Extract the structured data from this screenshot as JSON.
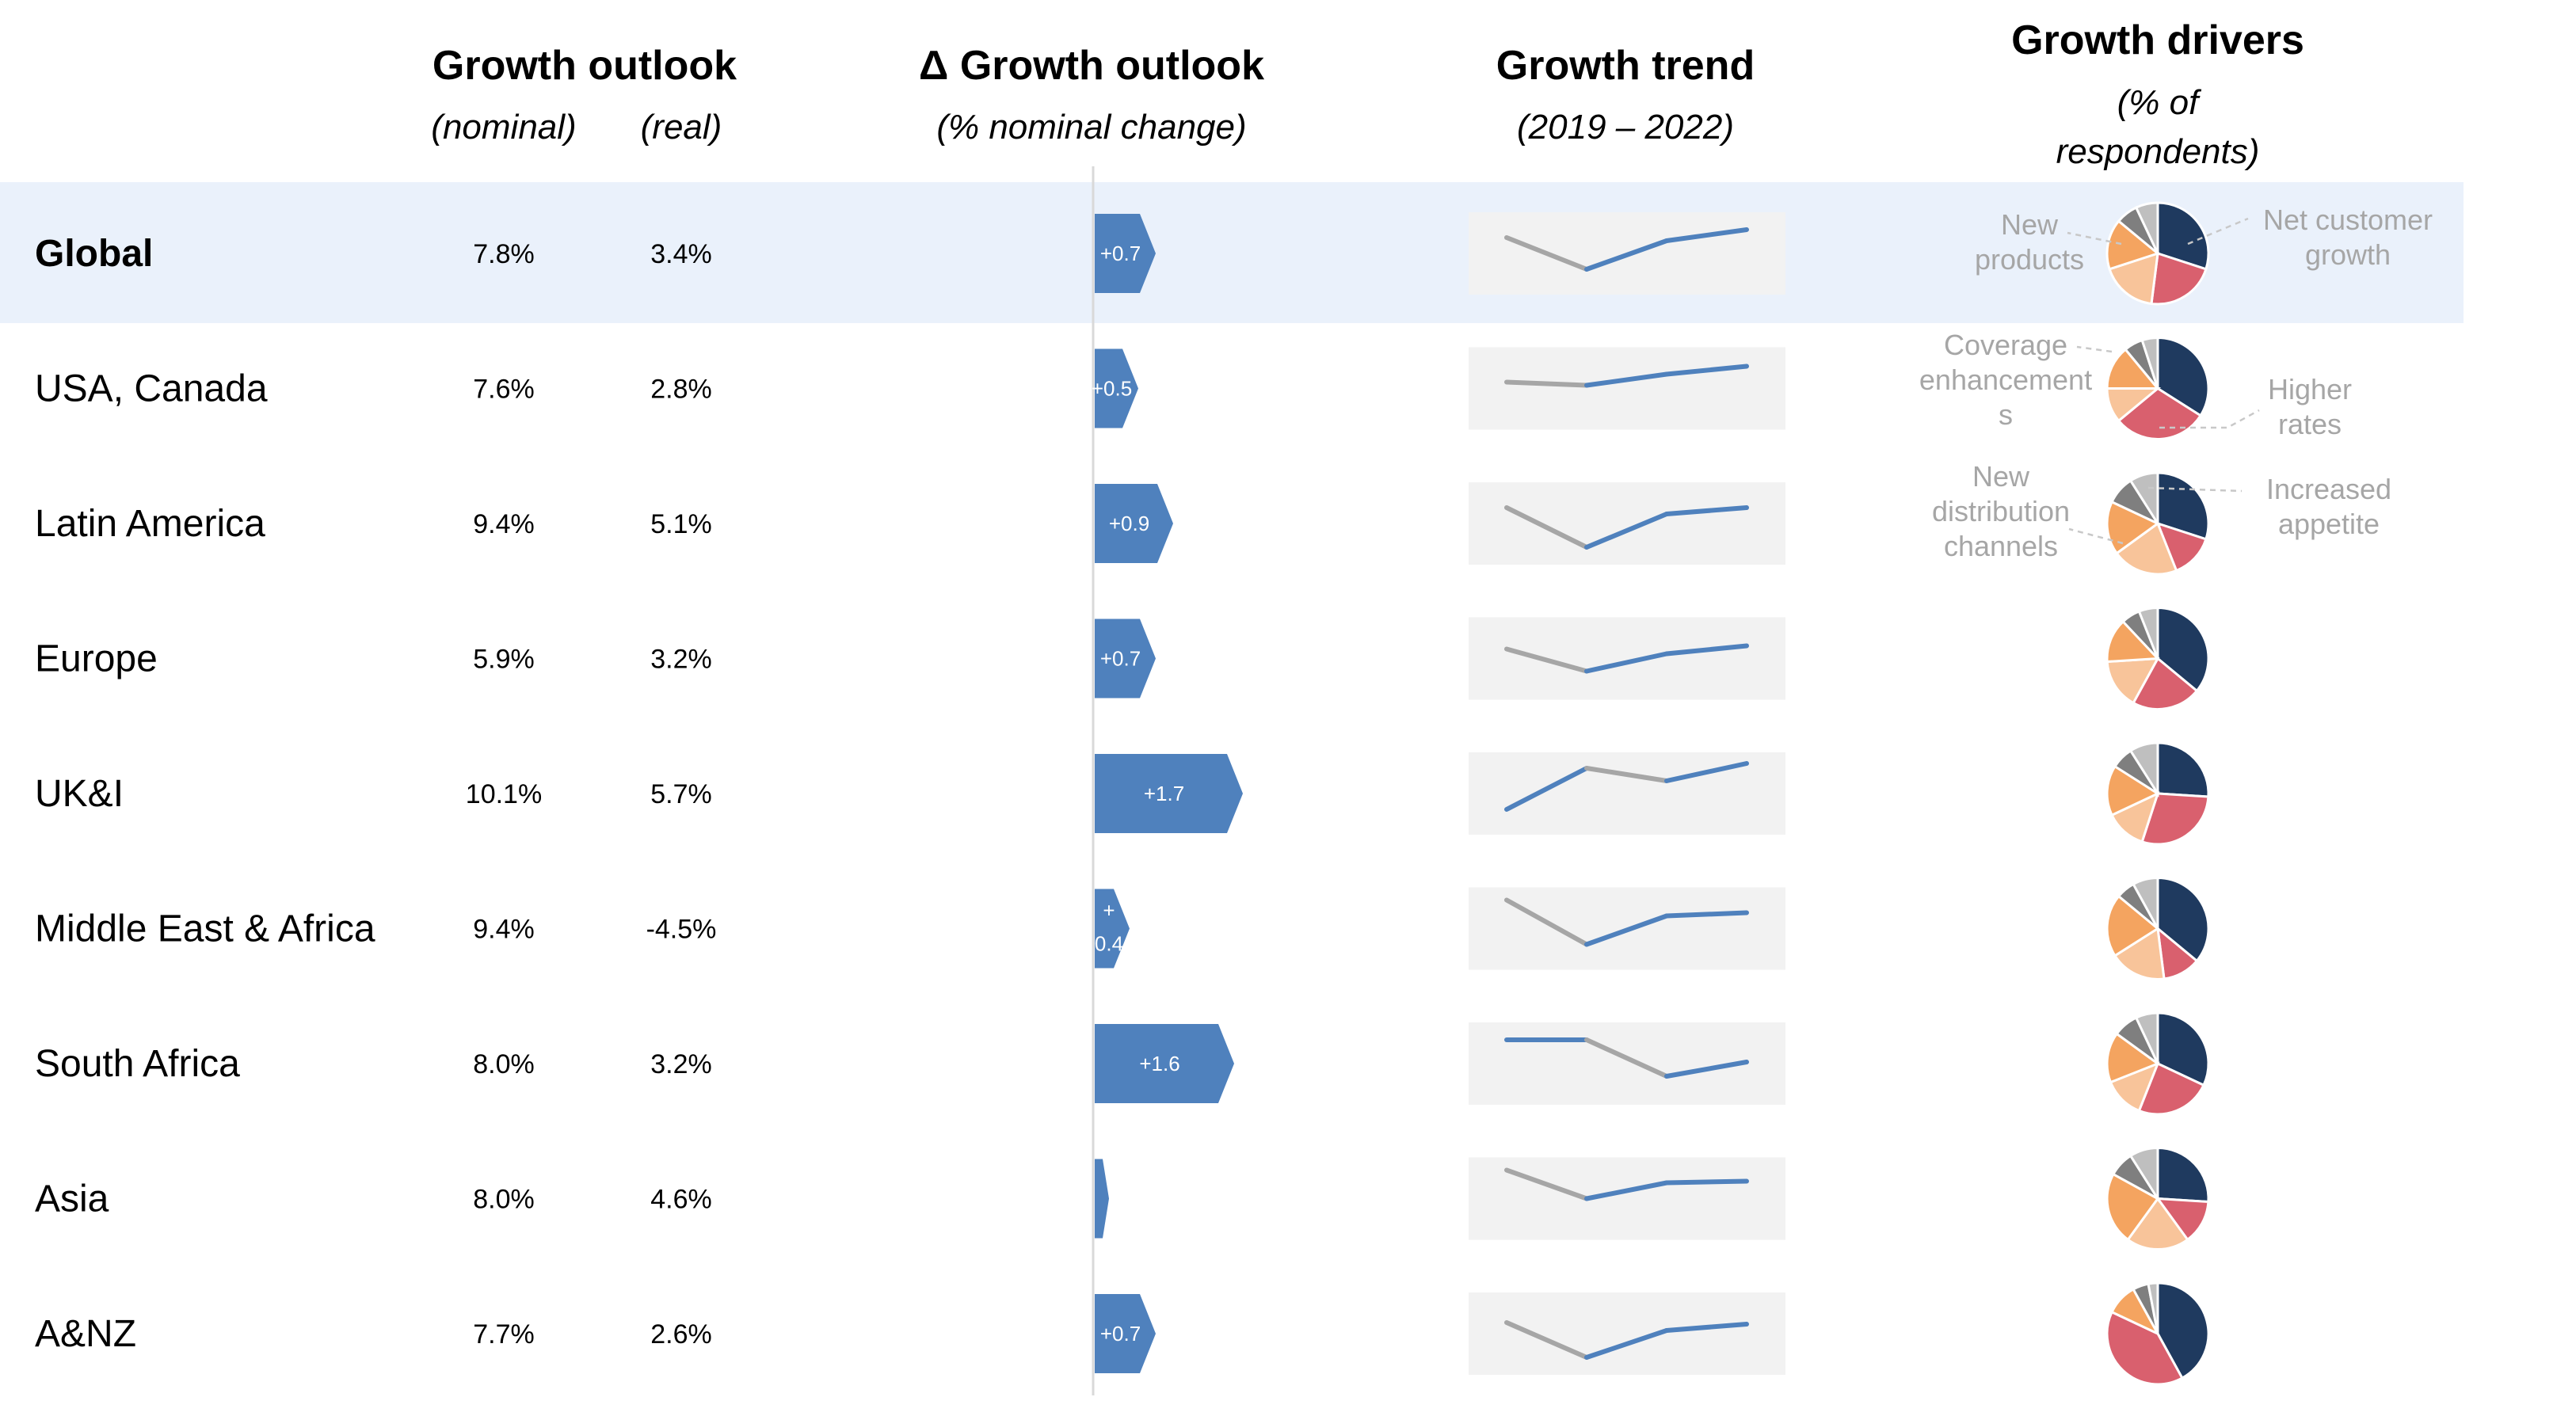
{
  "headers": {
    "growth_outlook": "Growth outlook",
    "nominal": "(nominal)",
    "real": "(real)",
    "delta_outlook": "Δ Growth outlook",
    "delta_sub": "(% nominal change)",
    "trend": "Growth trend",
    "trend_sub": "(2019 – 2022)",
    "drivers": "Growth drivers",
    "drivers_sub_1": "(% of",
    "drivers_sub_2": "respondents)"
  },
  "annotations": {
    "new_products": [
      "New",
      "products"
    ],
    "net_customer_growth": [
      "Net customer",
      "growth"
    ],
    "coverage_enhancements": [
      "Coverage",
      "enhancement",
      "s"
    ],
    "higher_rates": [
      "Higher",
      "rates"
    ],
    "new_distribution_channels": [
      "New",
      "distribution",
      "channels"
    ],
    "increased_appetite": [
      "Increased",
      "appetite"
    ]
  },
  "colors": {
    "highlight_row": "#eaf1fb",
    "bar": "#4f81bd",
    "trend_bg": "#f2f2f2",
    "trend_up": "#4f81bd",
    "trend_down": "#a6a6a6",
    "pie": [
      "#1f3a5f",
      "#d9606e",
      "#f8c49a",
      "#f4a460",
      "#7f7f7f",
      "#bfbfbf"
    ],
    "annotation_text": "#a6a6a6"
  },
  "chart_data": {
    "type": "table",
    "columns": [
      "Region",
      "Growth outlook (nominal)",
      "Growth outlook (real)",
      "Δ Growth outlook",
      "Growth trend",
      "Growth drivers"
    ],
    "pie_categories": [
      "Net customer growth",
      "Higher rates",
      "Increased appetite",
      "New distribution channels",
      "Coverage enhancements",
      "New products"
    ],
    "rows": [
      {
        "region": "Global",
        "nominal": "7.8%",
        "real": "3.4%",
        "delta": 0.7,
        "delta_label": "+0.7",
        "trend": [
          3.0,
          1.0,
          2.8,
          3.5
        ],
        "drivers": [
          30,
          22,
          18,
          16,
          7,
          7
        ]
      },
      {
        "region": "USA, Canada",
        "nominal": "7.6%",
        "real": "2.8%",
        "delta": 0.5,
        "delta_label": "+0.5",
        "trend": [
          2.4,
          2.2,
          2.9,
          3.4
        ],
        "drivers": [
          34,
          30,
          11,
          14,
          6,
          5
        ]
      },
      {
        "region": "Latin America",
        "nominal": "9.4%",
        "real": "5.1%",
        "delta": 0.9,
        "delta_label": "+0.9",
        "trend": [
          3.0,
          0.5,
          2.6,
          3.0
        ],
        "drivers": [
          30,
          14,
          21,
          17,
          9,
          9
        ]
      },
      {
        "region": "Europe",
        "nominal": "5.9%",
        "real": "3.2%",
        "delta": 0.7,
        "delta_label": "+0.7",
        "trend": [
          2.6,
          1.2,
          2.3,
          2.8
        ],
        "drivers": [
          36,
          22,
          16,
          14,
          6,
          6
        ]
      },
      {
        "region": "UK&I",
        "nominal": "10.1%",
        "real": "5.7%",
        "delta": 1.7,
        "delta_label": "+1.7",
        "trend": [
          1.0,
          3.6,
          2.8,
          3.9
        ],
        "drivers": [
          26,
          29,
          13,
          16,
          7,
          9
        ]
      },
      {
        "region": "Middle East & Africa",
        "nominal": "9.4%",
        "real": "-4.5%",
        "delta": 0.4,
        "delta_label": "+ 0.4",
        "trend": [
          3.8,
          1.0,
          2.8,
          3.0
        ],
        "drivers": [
          36,
          12,
          18,
          20,
          6,
          8
        ]
      },
      {
        "region": "South Africa",
        "nominal": "8.0%",
        "real": "3.2%",
        "delta": 1.6,
        "delta_label": "+1.6",
        "trend": [
          3.5,
          3.5,
          1.2,
          2.1
        ],
        "drivers": [
          32,
          24,
          13,
          16,
          8,
          7
        ]
      },
      {
        "region": "Asia",
        "nominal": "8.0%",
        "real": "4.6%",
        "delta": 0.2,
        "delta_label": "",
        "trend": [
          3.8,
          2.0,
          3.0,
          3.1
        ],
        "drivers": [
          26,
          14,
          20,
          23,
          8,
          9
        ]
      },
      {
        "region": "A&NZ",
        "nominal": "7.7%",
        "real": "2.6%",
        "delta": 0.7,
        "delta_label": "+0.7",
        "trend": [
          2.7,
          0.5,
          2.2,
          2.6
        ],
        "drivers": [
          42,
          40,
          0,
          10,
          5,
          3
        ]
      }
    ]
  }
}
